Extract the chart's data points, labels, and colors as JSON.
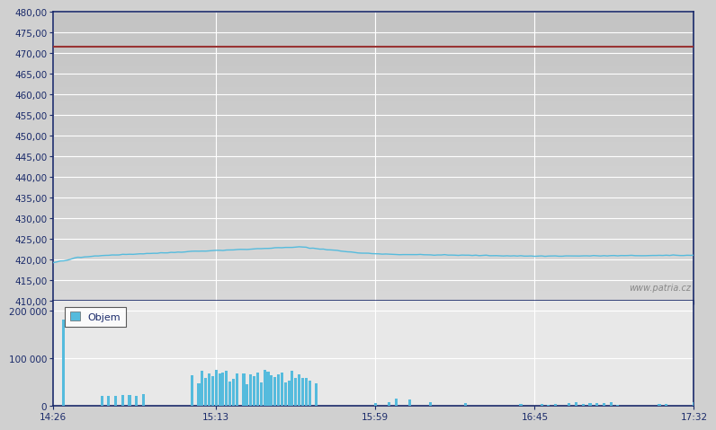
{
  "price_ylim": [
    410.0,
    480.0
  ],
  "price_yticks": [
    410.0,
    415.0,
    420.0,
    425.0,
    430.0,
    435.0,
    440.0,
    445.0,
    450.0,
    455.0,
    460.0,
    465.0,
    470.0,
    475.0,
    480.0
  ],
  "red_line_y": 471.5,
  "price_line_color": "#55bbdd",
  "red_line_color": "#993333",
  "volume_ylim": [
    0,
    220000
  ],
  "volume_yticks": [
    0,
    100000,
    200000
  ],
  "volume_bar_color": "#55bbdd",
  "xtick_labels": [
    "14:26",
    "15:13",
    "15:59",
    "16:45",
    "17:32"
  ],
  "bg_color": "#d4d4d4",
  "bg_color_light": "#e8e8e8",
  "grid_color": "#ffffff",
  "axis_label_color": "#1a2a6a",
  "tick_label_color": "#1a2a6a",
  "spine_color": "#1a2a6a",
  "watermark": "www.patria.cz",
  "watermark_color": "#888888",
  "legend_label": "Objem",
  "total_points": 186,
  "fig_bg": "#d0d0d0"
}
